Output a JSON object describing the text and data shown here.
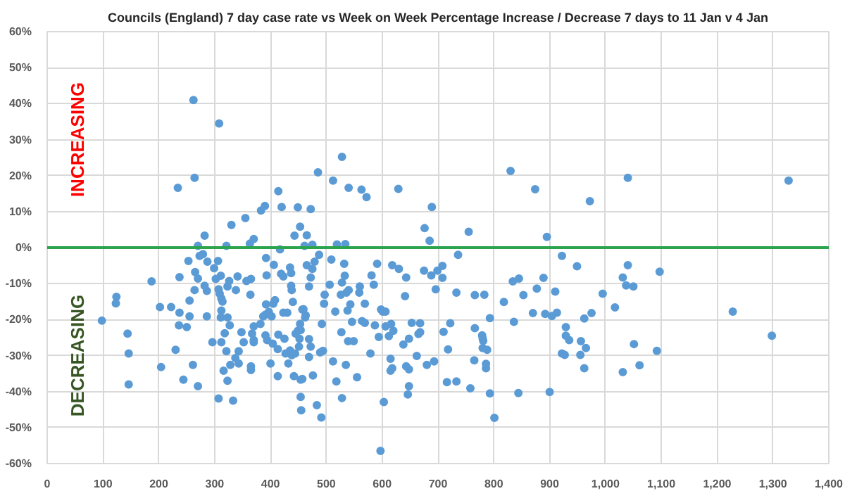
{
  "chart_data": {
    "type": "scatter",
    "title": "Councils (England) 7 day case rate vs Week on Week Percentage Increase / Decrease 7 days to 11 Jan v 4 Jan",
    "annotations": [
      "INCREASING",
      "DECREASING"
    ],
    "xlim": [
      0,
      1400
    ],
    "ylim": [
      -60,
      60
    ],
    "xticks": [
      0,
      100,
      200,
      300,
      400,
      500,
      600,
      700,
      800,
      900,
      {
        "value": 1000,
        "label": "1,000"
      },
      {
        "value": 1100,
        "label": "1,100"
      },
      {
        "value": 1200,
        "label": "1,200"
      },
      {
        "value": 1300,
        "label": "1,300"
      },
      {
        "value": 1400,
        "label": "1,400"
      }
    ],
    "yticks": [
      {
        "value": -60,
        "label": "-60%"
      },
      {
        "value": -50,
        "label": "-50%"
      },
      {
        "value": -40,
        "label": "-40%"
      },
      {
        "value": -30,
        "label": "-30%"
      },
      {
        "value": -20,
        "label": "-20%"
      },
      {
        "value": -10,
        "label": "-10%"
      },
      {
        "value": 0,
        "label": "0%"
      },
      {
        "value": 10,
        "label": "10%"
      },
      {
        "value": 20,
        "label": "20%"
      },
      {
        "value": 30,
        "label": "30%"
      },
      {
        "value": 40,
        "label": "40%"
      },
      {
        "value": 50,
        "label": "50%"
      },
      {
        "value": 60,
        "label": "60%"
      }
    ],
    "ref_lines": [
      {
        "axis": "y",
        "value": 0,
        "color": "#2ca44e"
      }
    ],
    "grid": true,
    "marker": "circle",
    "series": [
      {
        "color": "#5b9bd5",
        "x": [
          262,
          308,
          234,
          264,
          414,
          420,
          449,
          390,
          383,
          355,
          330,
          282,
          443,
          453,
          370,
          363,
          270,
          321,
          465,
          472,
          485,
          512,
          528,
          540,
          563,
          572,
          629,
          676,
          689,
          685,
          755,
          830,
          874,
          895,
          461,
          475,
          519,
          534,
          972,
          1040,
          1328,
          98,
          124,
          123,
          144,
          146,
          146,
          187,
          202,
          204,
          222,
          230,
          237,
          236,
          237,
          244,
          250,
          253,
          255,
          255,
          261,
          264,
          265,
          270,
          270,
          273,
          279,
          282,
          286,
          286,
          287,
          296,
          299,
          302,
          306,
          307,
          307,
          309,
          311,
          312,
          312,
          311,
          312,
          314,
          316,
          318,
          321,
          323,
          323,
          326,
          328,
          327,
          323,
          333,
          337,
          338,
          341,
          343,
          343,
          348,
          352,
          357,
          365,
          365,
          364,
          365,
          367,
          370,
          370,
          370,
          382,
          387,
          391,
          392,
          391,
          393,
          392,
          394,
          397,
          400,
          402,
          404,
          405,
          408,
          406,
          413,
          413,
          414,
          417,
          419,
          423,
          423,
          425,
          427,
          430,
          432,
          435,
          435,
          437,
          437,
          438,
          438,
          440,
          442,
          444,
          445,
          449,
          451,
          453,
          454,
          454,
          455,
          457,
          465,
          475,
          472,
          469,
          479,
          487,
          509,
          532,
          459,
          463,
          462,
          454,
          452,
          469,
          472,
          489,
          494,
          469,
          492,
          496,
          497,
          506,
          516,
          526,
          528,
          533,
          536,
          540,
          543,
          538,
          527,
          539,
          549,
          535,
          512,
          518,
          528,
          555,
          476,
          457,
          483,
          491,
          546,
          560,
          559,
          564,
          569,
          569,
          579,
          581,
          585,
          587,
          591,
          594,
          598,
          601,
          606,
          606,
          603,
          597,
          612,
          615,
          616,
          620,
          618,
          615,
          618,
          630,
          638,
          641,
          643,
          643,
          648,
          648,
          646,
          648,
          653,
          662,
          665,
          668,
          668,
          675,
          680,
          688,
          693,
          696,
          699,
          708,
          708,
          710,
          718,
          716,
          722,
          733,
          733,
          736,
          758,
          765,
          766,
          766,
          779,
          780,
          781,
          783,
          780,
          788,
          786,
          786,
          793,
          793,
          801,
          818,
          834,
          836,
          845,
          844,
          853,
          870,
          877,
          889,
          892,
          900,
          904,
          910,
          913,
          922,
          929,
          929,
          935,
          922,
          927,
          949,
          956,
          955,
          962,
          962,
          1040,
          1097,
          1031,
          1037,
          1050,
          995,
          1017,
          975,
          965,
          1051,
          1092,
          1031,
          1061,
          1228,
          1298
        ],
        "values": [
          41.0,
          34.5,
          16.6,
          19.4,
          15.7,
          11.3,
          11.2,
          11.6,
          10.3,
          8.2,
          6.3,
          3.3,
          3.3,
          5.8,
          2.4,
          1.1,
          0.5,
          0.5,
          3.4,
          10.7,
          20.9,
          18.6,
          25.2,
          16.6,
          16.1,
          14.0,
          16.3,
          5.4,
          11.3,
          1.9,
          4.4,
          21.3,
          16.2,
          3.0,
          0.5,
          0.8,
          0.9,
          1.0,
          12.9,
          19.4,
          18.6,
          -20.3,
          -13.7,
          -15.5,
          -23.9,
          -29.4,
          -38,
          -9.4,
          -16.5,
          -33.2,
          -16.5,
          -28.4,
          -18.1,
          -21.6,
          -8.2,
          -36.7,
          -22.1,
          -3.7,
          -14.7,
          -19.1,
          -32.6,
          -11.8,
          -6.8,
          -38.5,
          -8.6,
          -2.3,
          -1.8,
          -10.6,
          -19.1,
          -12,
          -3.9,
          -26.3,
          -5.7,
          -8.7,
          -3.7,
          -11.6,
          -41.9,
          -12.8,
          -7.8,
          -17.5,
          -14.1,
          -19.4,
          -26.3,
          -15,
          -34.2,
          -23.8,
          -28.8,
          -37,
          -19.4,
          -9.3,
          -32.6,
          -21.6,
          -10.8,
          -42.5,
          -30.7,
          -11.8,
          -8,
          -28.8,
          -32.2,
          -23.5,
          -26.3,
          -9.3,
          -34,
          -33,
          -13.1,
          -8.7,
          -23.9,
          -25.7,
          -21.9,
          -26.3,
          -21.2,
          -19.1,
          -18.6,
          -15.8,
          -24.4,
          -7.7,
          -2.9,
          -25.7,
          -17.9,
          -32.2,
          -19.1,
          -26.7,
          -15.6,
          -14.6,
          -4.8,
          -28.2,
          -35.7,
          -24.2,
          -0.5,
          -7.3,
          -8,
          -18.1,
          -25.3,
          -29.4,
          -18.1,
          -32.2,
          -28.6,
          -5.5,
          -7.1,
          -10.6,
          -11.8,
          -29.9,
          -15.1,
          -35.7,
          -29.4,
          -23.9,
          -23.1,
          -27.5,
          -21.2,
          -36.7,
          -41.5,
          -45.2,
          -17.2,
          -4.9,
          -5.9,
          -8.3,
          -10.8,
          -3.9,
          -2,
          -3.3,
          -4.5,
          -17.1,
          -18.8,
          -19.4,
          -22.9,
          -25.3,
          -25.4,
          -27.5,
          -29.1,
          -28.7,
          -30.4,
          -21.2,
          -15.6,
          -13.1,
          -10.3,
          -17.8,
          -13.1,
          -9.7,
          -7.8,
          -12.5,
          -11.8,
          -15.8,
          -17.5,
          -23.5,
          -26,
          -26,
          -32.6,
          -31.6,
          -37.2,
          -41.8,
          -36,
          -35.5,
          -36.5,
          -43.8,
          -47.2,
          -20.6,
          -10.8,
          -12.5,
          -20.4,
          -15.6,
          -20.9,
          -29.4,
          -7.7,
          -10.3,
          -21.6,
          -4.5,
          -24.8,
          -17.2,
          -17.8,
          -21.9,
          -17.8,
          -42.9,
          -56.5,
          -24.6,
          -30.9,
          -21.2,
          -23.1,
          -33.5,
          -34.2,
          -4.9,
          -5.9,
          -26.9,
          -13.5,
          -8.3,
          -33,
          -33.8,
          -38.5,
          -40.8,
          -25.3,
          -20.9,
          -30.1,
          -24,
          -23.5,
          -21,
          -6.4,
          -32.6,
          -7.7,
          -31.6,
          -11.6,
          -6.4,
          -5.1,
          -8.4,
          -23.4,
          -28.3,
          -37.4,
          -21,
          -37.2,
          -12.5,
          -2,
          -39.1,
          -31.3,
          -22.4,
          -13.2,
          -24.4,
          -25.2,
          -25.9,
          -13.1,
          -27.9,
          -28.4,
          -32.3,
          -33.5,
          -19.6,
          -40.5,
          -47.3,
          -15.1,
          -9.4,
          -20.6,
          -8.6,
          -40.4,
          -13.2,
          -18.2,
          -11.4,
          -8.4,
          -18.4,
          -40.1,
          -19,
          -12.2,
          -18.1,
          -2.3,
          -22.1,
          -24.5,
          -25.7,
          -29.4,
          -29.8,
          -5.2,
          -26,
          -29.8,
          -19.7,
          -33.5,
          -4.9,
          -6.7,
          -8.3,
          -10.5,
          -10.8,
          -12.8,
          -16.6,
          -18.2,
          -27.9,
          -26.8,
          -28.7,
          -34.6,
          -32.7,
          -17.8,
          -24.5
        ]
      }
    ]
  }
}
